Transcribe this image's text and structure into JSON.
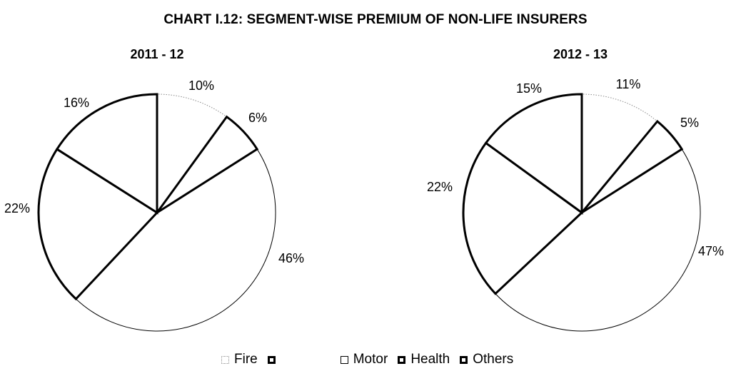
{
  "chart_title": "CHART I.12: SEGMENT-WISE PREMIUM OF NON-LIFE INSURERS",
  "chart_data": [
    {
      "type": "pie",
      "title": "2011 - 12",
      "categories": [
        "Fire",
        "",
        "Motor",
        "Health",
        "Others"
      ],
      "values": [
        10,
        6,
        46,
        22,
        16
      ],
      "labels": [
        "10%",
        "6%",
        "46%",
        "22%",
        "16%"
      ],
      "legend": "bottom"
    },
    {
      "type": "pie",
      "title": "2012 - 13",
      "categories": [
        "Fire",
        "",
        "Motor",
        "Health",
        "Others"
      ],
      "values": [
        11,
        5,
        47,
        22,
        15
      ],
      "labels": [
        "11%",
        "5%",
        "47%",
        "22%",
        "15%"
      ],
      "legend": "bottom"
    }
  ],
  "legend": {
    "items": [
      {
        "label": "Fire",
        "style": "dotted"
      },
      {
        "label": "",
        "style": "thick"
      },
      {
        "label": "Motor",
        "style": "thin"
      },
      {
        "label": "Health",
        "style": "thick"
      },
      {
        "label": "Others",
        "style": "thick"
      }
    ]
  },
  "colors": {
    "fill": "#ffffff",
    "stroke": "#000000"
  }
}
